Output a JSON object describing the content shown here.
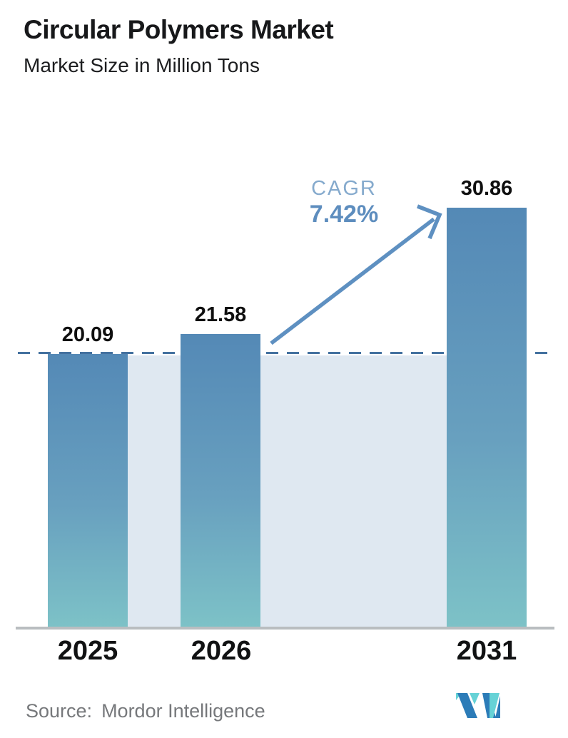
{
  "header": {
    "title": "Circular Polymers Market",
    "subtitle": "Market Size in Million Tons"
  },
  "chart_data": {
    "type": "bar",
    "title": "Circular Polymers Market",
    "ylabel": "Market Size in Million Tons",
    "categories": [
      "2025",
      "2026",
      "2031"
    ],
    "values": [
      20.09,
      21.58,
      30.86
    ],
    "value_labels": [
      "20.09",
      "21.58",
      "30.86"
    ],
    "ylim": [
      0,
      32
    ],
    "grid": false,
    "legend": false,
    "baseline_dashed_at": 20.09,
    "annotation": {
      "label": "CAGR",
      "value": "7.42%",
      "arrow": "from 2026 bar top to 2031 bar top"
    }
  },
  "footer": {
    "source_label": "Source:",
    "source_value": "Mordor Intelligence"
  },
  "colors": {
    "bar_gradient_top": "#5489b6",
    "bar_gradient_bottom": "#7dc2c7",
    "baseline_band": "#dfe8f1",
    "dashed_line": "#44719f",
    "arrow": "#5e90c1",
    "cagr_label": "#85aacd",
    "cagr_value": "#5d8dbe",
    "axis_line": "#b9bdc0",
    "text": "#141414",
    "source_text": "#76787b",
    "logo_teal": "#66d2d6",
    "logo_blue": "#2c7cb8"
  }
}
